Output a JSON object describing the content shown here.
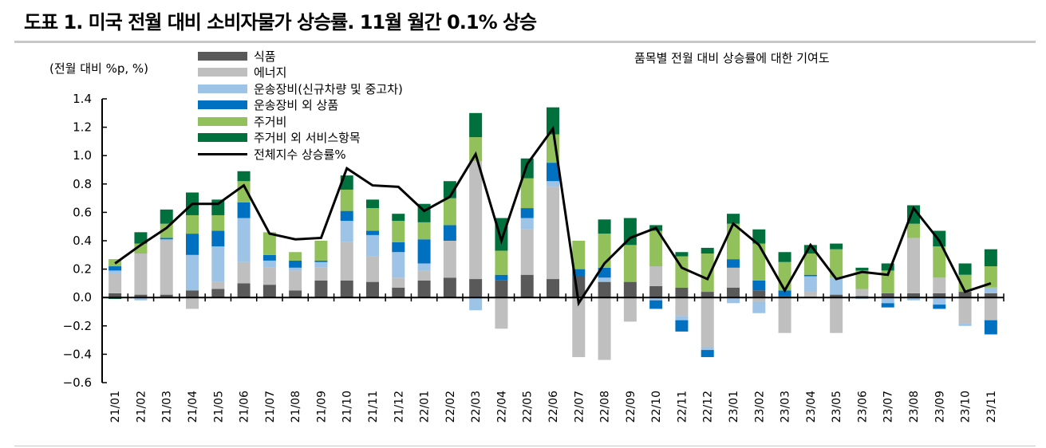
{
  "title": "도표 1. 미국 전월 대비 소비자물가 상승률. 11월 월간 0.1% 상승",
  "chart_data": {
    "type": "bar",
    "stacked": true,
    "title": "도표 1. 미국 전월 대비 소비자물가 상승률. 11월 월간 0.1% 상승",
    "annotation": "품목별 전월 대비 상승률에 대한 기여도",
    "ylabel": "(전월 대비 %p, %)",
    "xlabel": "",
    "ylim": [
      -0.6,
      1.4
    ],
    "yticks": [
      "1.4",
      "1.2",
      "1.0",
      "0.8",
      "0.6",
      "0.4",
      "0.2",
      "0.0",
      "−0.2",
      "−0.4",
      "−0.6"
    ],
    "ytick_values": [
      1.4,
      1.2,
      1.0,
      0.8,
      0.6,
      0.4,
      0.2,
      0.0,
      -0.2,
      -0.4,
      -0.6
    ],
    "grid": false,
    "legend_position": "top-left",
    "categories": [
      "21/01",
      "21/02",
      "21/03",
      "21/04",
      "21/05",
      "21/06",
      "21/07",
      "21/08",
      "21/09",
      "21/10",
      "21/11",
      "21/12",
      "22/01",
      "22/02",
      "22/03",
      "22/04",
      "22/05",
      "22/06",
      "22/07",
      "22/08",
      "22/09",
      "22/10",
      "22/11",
      "22/12",
      "23/01",
      "23/02",
      "23/03",
      "23/04",
      "23/05",
      "23/06",
      "23/07",
      "23/08",
      "23/09",
      "23/10",
      "23/11"
    ],
    "series": [
      {
        "name": "식품",
        "color": "#595959",
        "values": [
          0.03,
          0.02,
          0.02,
          0.05,
          0.06,
          0.1,
          0.09,
          0.05,
          0.12,
          0.12,
          0.11,
          0.07,
          0.12,
          0.14,
          0.13,
          0.12,
          0.16,
          0.13,
          0.15,
          0.11,
          0.11,
          0.08,
          0.07,
          0.04,
          0.07,
          0.05,
          0.01,
          0.0,
          0.02,
          0.01,
          0.03,
          0.03,
          0.03,
          0.04,
          0.03
        ]
      },
      {
        "name": "에너지",
        "color": "#bfbfbf",
        "values": [
          0.14,
          0.29,
          0.38,
          -0.08,
          0.05,
          0.15,
          0.12,
          0.14,
          0.09,
          0.27,
          0.18,
          0.07,
          0.07,
          0.26,
          0.83,
          -0.22,
          0.32,
          0.65,
          -0.42,
          -0.44,
          -0.17,
          0.14,
          -0.13,
          -0.35,
          0.14,
          -0.03,
          -0.25,
          0.04,
          -0.25,
          0.05,
          0.0,
          0.39,
          0.11,
          -0.18,
          -0.16
        ]
      },
      {
        "name": "운송장비(신규차량 및 중고차)",
        "color": "#9dc3e6",
        "values": [
          0.02,
          -0.02,
          0.01,
          0.25,
          0.25,
          0.31,
          0.05,
          0.02,
          0.04,
          0.15,
          0.15,
          0.18,
          0.05,
          0.0,
          -0.09,
          0.0,
          0.08,
          0.04,
          0.0,
          0.03,
          0.0,
          -0.02,
          -0.03,
          -0.02,
          -0.04,
          -0.08,
          0.0,
          0.11,
          0.12,
          -0.01,
          -0.04,
          -0.02,
          -0.05,
          -0.02,
          0.04
        ]
      },
      {
        "name": "운송장비 외 상품",
        "color": "#0070c0",
        "values": [
          0.03,
          0.0,
          0.01,
          0.15,
          0.11,
          0.11,
          0.04,
          0.05,
          0.01,
          0.07,
          0.03,
          0.07,
          0.17,
          0.11,
          0.0,
          0.04,
          0.07,
          0.13,
          0.05,
          0.07,
          0.0,
          -0.06,
          -0.08,
          -0.05,
          0.06,
          0.07,
          0.04,
          0.01,
          0.0,
          0.0,
          -0.03,
          0.0,
          -0.03,
          0.0,
          -0.1
        ]
      },
      {
        "name": "주거비",
        "color": "#92c05a",
        "values": [
          0.05,
          0.07,
          0.1,
          0.13,
          0.11,
          0.15,
          0.16,
          0.06,
          0.14,
          0.15,
          0.16,
          0.15,
          0.12,
          0.19,
          0.17,
          0.17,
          0.21,
          0.2,
          0.2,
          0.24,
          0.26,
          0.25,
          0.22,
          0.27,
          0.25,
          0.26,
          0.2,
          0.15,
          0.2,
          0.13,
          0.16,
          0.1,
          0.22,
          0.12,
          0.15
        ]
      },
      {
        "name": "주거비 외 서비스항목",
        "color": "#00703c",
        "values": [
          -0.01,
          0.08,
          0.1,
          0.16,
          0.11,
          0.07,
          0.0,
          0.0,
          0.0,
          0.1,
          0.06,
          0.05,
          0.13,
          0.12,
          0.17,
          0.23,
          0.14,
          0.19,
          0.0,
          0.1,
          0.19,
          0.04,
          0.03,
          0.04,
          0.07,
          0.1,
          0.07,
          0.06,
          0.04,
          0.02,
          0.05,
          0.13,
          0.11,
          0.08,
          0.12
        ]
      }
    ],
    "line": {
      "name": "전체지수 상승률%",
      "color": "#000000",
      "values": [
        0.24,
        0.37,
        0.49,
        0.66,
        0.66,
        0.79,
        0.45,
        0.41,
        0.42,
        0.91,
        0.79,
        0.78,
        0.61,
        0.71,
        1.01,
        0.4,
        0.94,
        1.19,
        -0.04,
        0.24,
        0.42,
        0.49,
        0.21,
        0.13,
        0.52,
        0.37,
        0.05,
        0.37,
        0.13,
        0.18,
        0.16,
        0.63,
        0.4,
        0.04,
        0.1
      ]
    }
  }
}
